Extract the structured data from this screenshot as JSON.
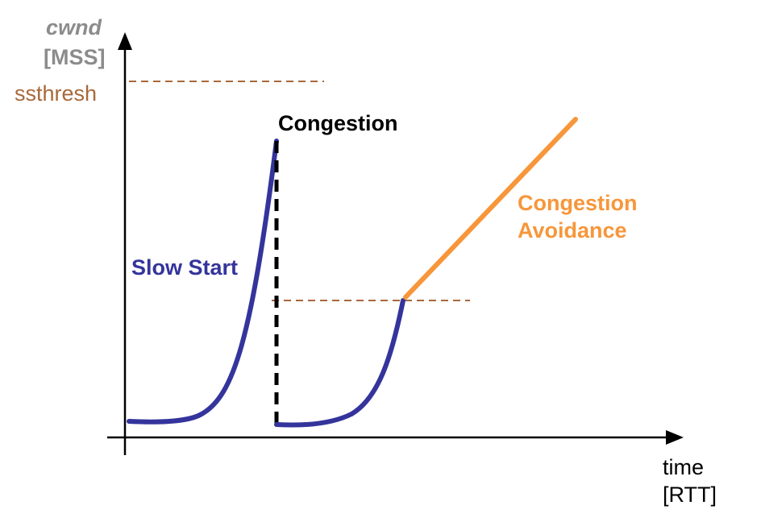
{
  "labels": {
    "y_axis_name": "cwnd",
    "y_axis_unit": "[MSS]",
    "x_axis_name": "time",
    "x_axis_unit": "[RTT]",
    "ssthresh": "ssthresh",
    "congestion": "Congestion",
    "slow_start": "Slow Start",
    "congestion_avoidance_line1": "Congestion",
    "congestion_avoidance_line2": "Avoidance"
  },
  "colors": {
    "axis": "#000000",
    "axis_label": "#8c8c8c",
    "ssthresh": "#a8683a",
    "slow_start": "#34349c",
    "congestion_avoidance": "#f7963a",
    "congestion": "#000000"
  }
}
